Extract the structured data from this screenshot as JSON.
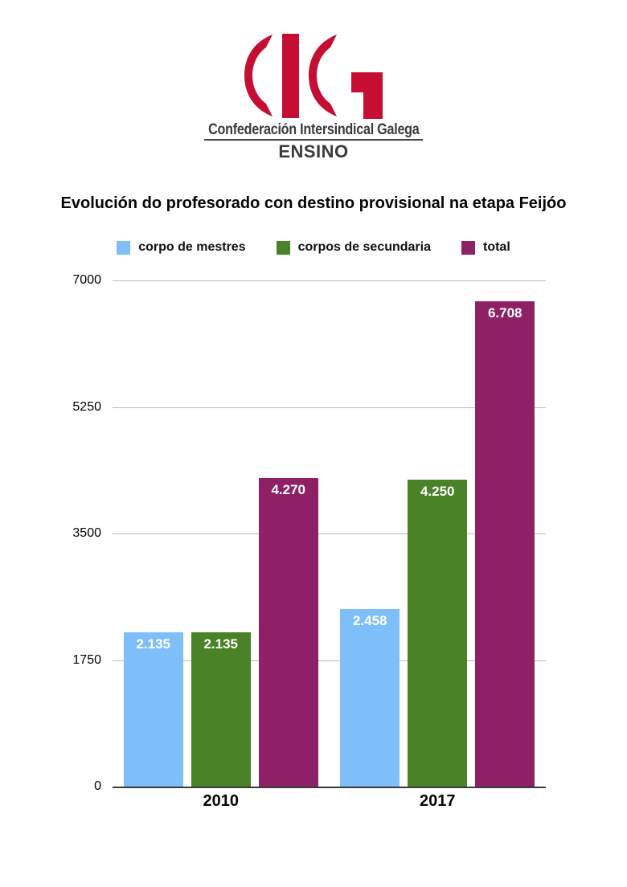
{
  "logo": {
    "org_name": "Confederación Intersindical Galega",
    "org_sub": "ENSINO",
    "brand_color": "#c60d32",
    "text_color": "#3b3b3d"
  },
  "chart_data": {
    "type": "bar",
    "title": "Evolución do profesorado con destino provisional na etapa Feijóo",
    "categories": [
      "2010",
      "2017"
    ],
    "series": [
      {
        "name": "corpo de mestres",
        "color": "#7fbff9",
        "values": [
          2135,
          2458
        ],
        "value_labels": [
          "2.135",
          "2.458"
        ]
      },
      {
        "name": "corpos de secundaria",
        "color": "#4a8227",
        "values": [
          2135,
          4250
        ],
        "value_labels": [
          "2.135",
          "4.250"
        ]
      },
      {
        "name": "total",
        "color": "#8e2166",
        "values": [
          4270,
          6708
        ],
        "value_labels": [
          "4.270",
          "6.708"
        ]
      }
    ],
    "xlabel": "",
    "ylabel": "",
    "ylim": [
      0,
      7000
    ],
    "yticks": [
      0,
      1750,
      3500,
      5250,
      7000
    ],
    "grid": true,
    "legend_position": "top",
    "gridline_color": "#bababa",
    "axis_line_color": "#3a3a3a",
    "value_label_color": "#ffffff"
  }
}
